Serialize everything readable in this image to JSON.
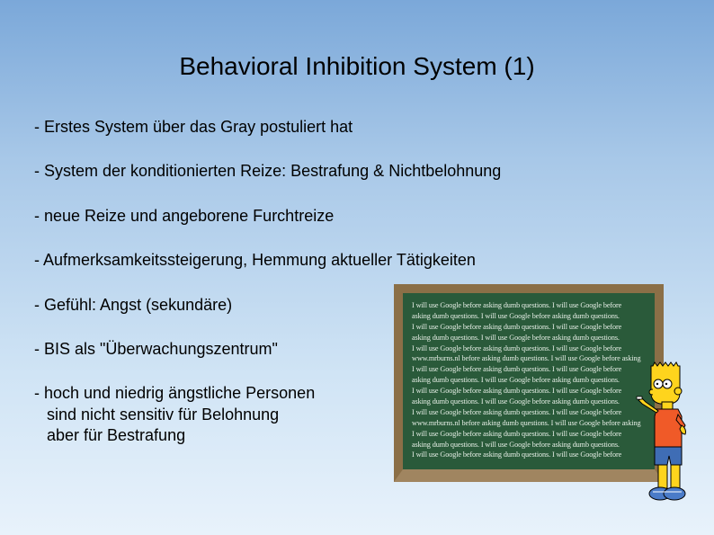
{
  "title": "Behavioral Inhibition System (1)",
  "bullets": [
    "- Erstes System über das Gray postuliert hat",
    "- System der konditionierten Reize: Bestrafung & Nichtbelohnung",
    "- neue Reize und angeborene Furchtreize",
    "- Aufmerksamkeitssteigerung, Hemmung aktueller Tätigkeiten",
    "- Gefühl: Angst (sekundäre)",
    "- BIS als \"Überwachungszentrum\""
  ],
  "bullet_multiline": {
    "line1": "- hoch und niedrig ängstliche Personen",
    "line2": "sind nicht sensitiv für Belohnung",
    "line3": "aber für Bestrafung"
  },
  "chalkboard": {
    "frame_color": "#8b6f47",
    "board_color": "#2a5a3a",
    "text_color": "#e8f0e8",
    "line_text": "I will use Google before asking dumb questions. I will use Google before",
    "line_text2": "asking dumb questions. I will use Google before asking dumb questions.",
    "line_text3": "www.mrburns.nl before asking dumb questions. I will use Google before asking",
    "line_count": 15
  },
  "bart_colors": {
    "skin": "#fed41d",
    "shirt": "#f05a28",
    "shorts": "#3f6db5",
    "shoes": "#4a7bc8"
  },
  "background": {
    "gradient_top": "#7ba8d9",
    "gradient_bottom": "#e8f2fb"
  }
}
